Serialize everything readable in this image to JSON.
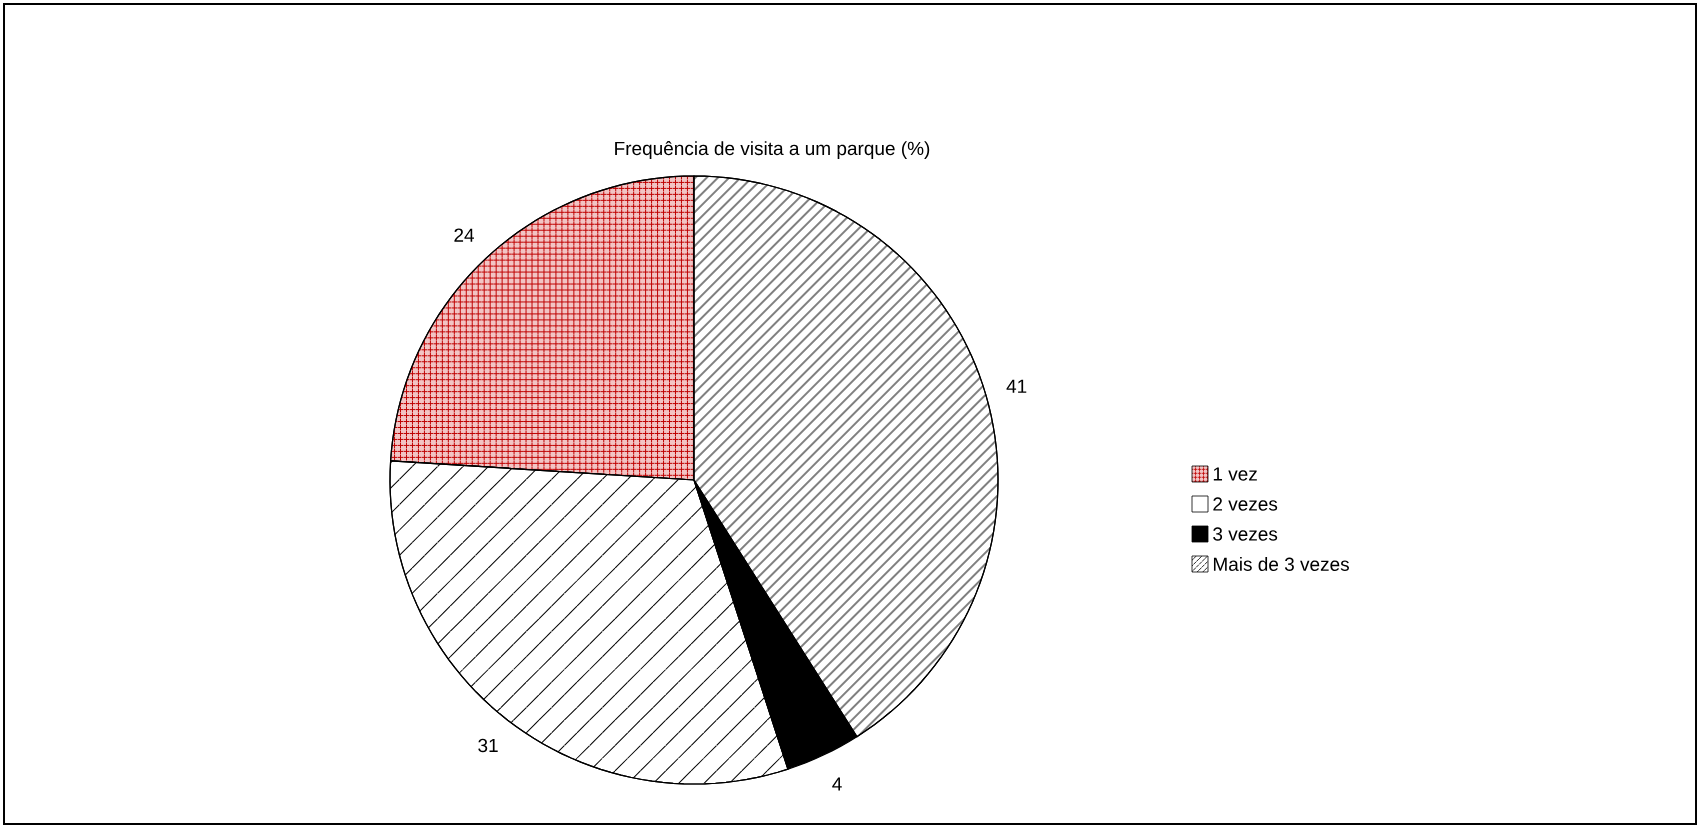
{
  "chart_data": {
    "type": "pie",
    "title": "Frequência de visita a um parque (%)",
    "categories": [
      "1 vez",
      "2 vezes",
      "3 vezes",
      "Mais de 3 vezes"
    ],
    "values": [
      24,
      31,
      4,
      41
    ],
    "colors": [
      "#f2c4c4",
      "#ffffff",
      "#000000",
      "#ffffff"
    ],
    "data_labels": true,
    "legend": "right"
  }
}
